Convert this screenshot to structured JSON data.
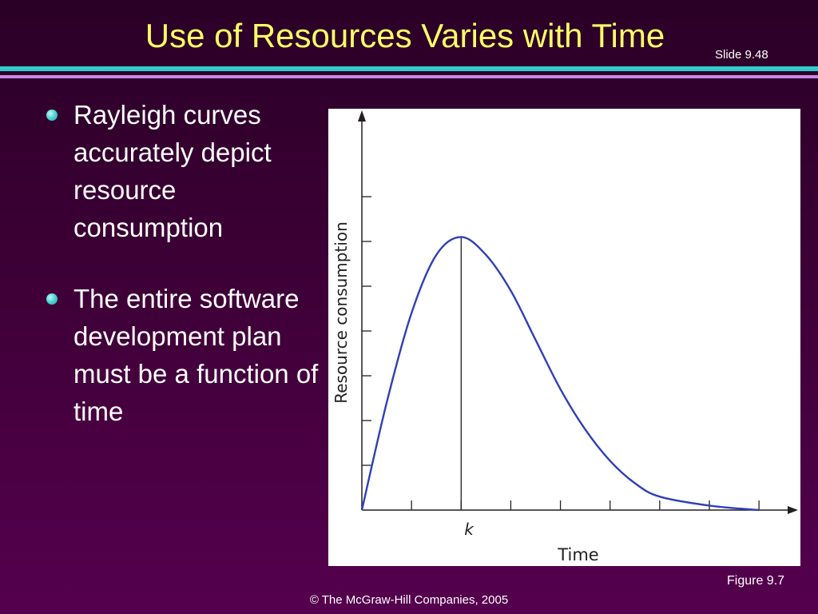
{
  "slide": {
    "title": "Use of Resources Varies with Time",
    "slide_number": "Slide 9.48",
    "bullets": [
      "Rayleigh curves accurately depict resource consumption",
      "The entire software development plan must be a function of time"
    ],
    "figure_caption": "Figure 9.7",
    "footer": "© The McGraw-Hill Companies, 2005"
  },
  "colors": {
    "title": "#ffff66",
    "accent_teal": "#33cccc",
    "accent_lilac": "#c98be6",
    "curve": "#2f3fb8"
  },
  "chart_data": {
    "type": "line",
    "title": "",
    "xlabel": "Time",
    "ylabel": "Resource consumption",
    "x_tick_labels": [
      "k"
    ],
    "peak_label": "k",
    "curve": "Rayleigh",
    "grid": false,
    "series": [
      {
        "values_description": "",
        "x": [
          0,
          0.25,
          0.5,
          0.75,
          1,
          1.25,
          1.5,
          1.75,
          2,
          2.25,
          2.5,
          2.75,
          3,
          3.5,
          4
        ],
        "y": [
          0,
          0.24,
          0.44,
          0.57,
          0.61,
          0.57,
          0.49,
          0.38,
          0.27,
          0.18,
          0.11,
          0.06,
          0.03,
          0.01,
          0.0
        ]
      }
    ],
    "xlim": [
      0,
      4.2
    ],
    "ylim": [
      0,
      0.8
    ]
  }
}
